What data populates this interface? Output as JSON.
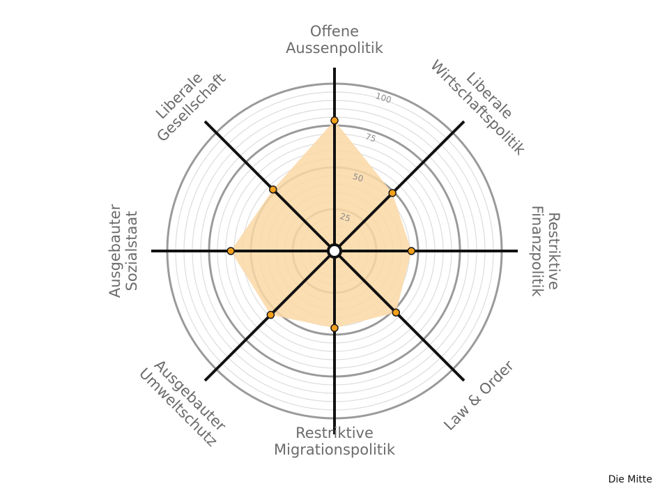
{
  "chart_data": {
    "type": "radar",
    "title": "Die Mitte",
    "axes": [
      {
        "label": [
          "Offene",
          "Aussenpolitik"
        ],
        "value": 78
      },
      {
        "label": [
          "Liberale",
          "Wirtschaftspolitik"
        ],
        "value": 49
      },
      {
        "label": [
          "Restriktive",
          "Finanzpolitik"
        ],
        "value": 46
      },
      {
        "label": [
          "Law & Order"
        ],
        "value": 52
      },
      {
        "label": [
          "Restriktive",
          "Migrationspolitik"
        ],
        "value": 46
      },
      {
        "label": [
          "Ausgebauter",
          "Umweltschutz"
        ],
        "value": 54
      },
      {
        "label": [
          "Ausgebauter",
          "Sozialstaat"
        ],
        "value": 62
      },
      {
        "label": [
          "Liberale",
          "Gesellschaft"
        ],
        "value": 52
      }
    ],
    "range": [
      0,
      100
    ],
    "ticks": [
      25,
      50,
      75,
      100
    ],
    "colors": {
      "fill": "#fbd8a6",
      "marker": "#f5a01a",
      "spoke": "#111111",
      "ring": "#9a9a9a"
    }
  }
}
